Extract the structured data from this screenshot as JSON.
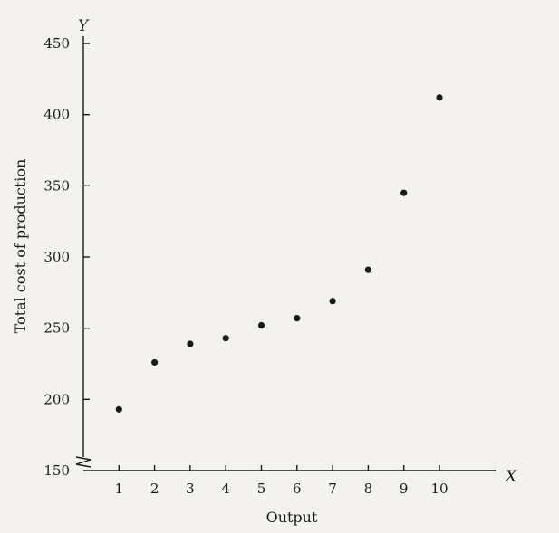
{
  "chart_data": {
    "type": "scatter",
    "title": "",
    "xlabel": "Output",
    "ylabel": "Total cost of production",
    "x_axis_letter": "X",
    "y_axis_letter": "Y",
    "xlim": [
      0,
      11
    ],
    "ylim": [
      150,
      450
    ],
    "x_ticks": [
      1,
      2,
      3,
      4,
      5,
      6,
      7,
      8,
      9,
      10
    ],
    "y_ticks": [
      150,
      200,
      250,
      300,
      350,
      400,
      450
    ],
    "axis_break": true,
    "grid": false,
    "x": [
      1,
      2,
      3,
      4,
      5,
      6,
      7,
      8,
      9,
      10
    ],
    "y": [
      193,
      226,
      239,
      243,
      252,
      257,
      269,
      291,
      345,
      412
    ]
  }
}
